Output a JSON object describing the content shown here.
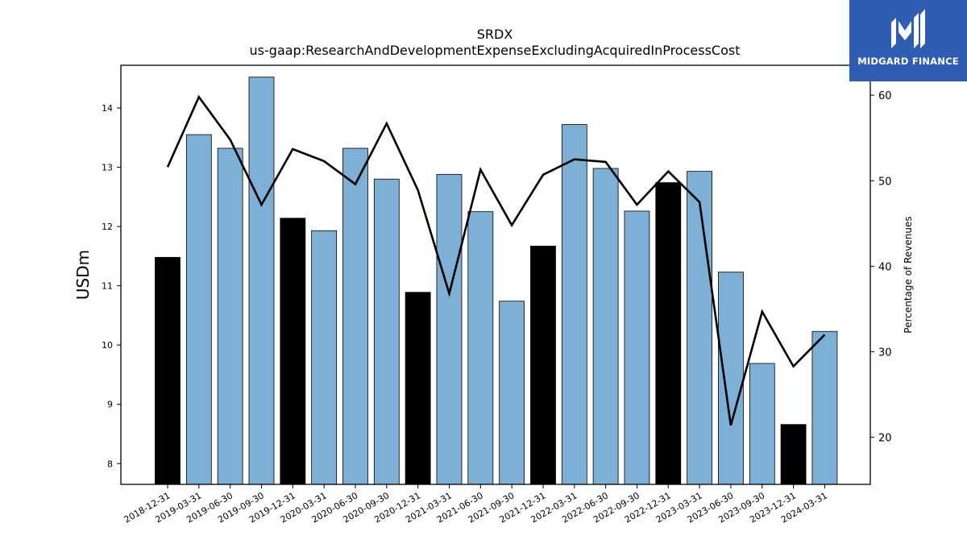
{
  "chart_data": {
    "type": "bar",
    "title": "SRDX",
    "subtitle": "us-gaap:ResearchAndDevelopmentExpenseExcludingAcquiredInProcessCost",
    "ylabel": "USDm",
    "y2label": "Percentage of Revenues",
    "ylim": [
      7.65,
      14.72
    ],
    "y2lim": [
      14.5,
      63.5
    ],
    "yticks": [
      8,
      9,
      10,
      11,
      12,
      13,
      14
    ],
    "y2ticks": [
      20,
      30,
      40,
      50,
      60
    ],
    "grid": false,
    "categories": [
      "2018-12-31",
      "2019-03-31",
      "2019-06-30",
      "2019-09-30",
      "2019-12-31",
      "2020-03-31",
      "2020-06-30",
      "2020-09-30",
      "2020-12-31",
      "2021-03-31",
      "2021-06-30",
      "2021-09-30",
      "2021-12-31",
      "2022-03-31",
      "2022-06-30",
      "2022-09-30",
      "2022-12-31",
      "2023-03-31",
      "2023-06-30",
      "2023-09-30",
      "2023-12-31",
      "2024-03-31"
    ],
    "series": [
      {
        "kind": "bar",
        "axis": "left",
        "values": [
          11.48,
          13.55,
          13.32,
          14.52,
          12.14,
          11.93,
          13.32,
          12.8,
          10.89,
          12.88,
          12.25,
          10.74,
          11.67,
          13.72,
          12.98,
          12.26,
          12.74,
          12.93,
          11.23,
          9.69,
          8.66,
          10.23
        ],
        "colors": [
          "#000000",
          "#7eb0d5",
          "#7eb0d5",
          "#7eb0d5",
          "#000000",
          "#7eb0d5",
          "#7eb0d5",
          "#7eb0d5",
          "#000000",
          "#7eb0d5",
          "#7eb0d5",
          "#7eb0d5",
          "#000000",
          "#7eb0d5",
          "#7eb0d5",
          "#7eb0d5",
          "#000000",
          "#7eb0d5",
          "#7eb0d5",
          "#7eb0d5",
          "#000000",
          "#7eb0d5"
        ]
      },
      {
        "kind": "line",
        "axis": "right",
        "color": "#000000",
        "values": [
          51.6,
          59.8,
          54.8,
          47.2,
          53.7,
          52.3,
          49.6,
          56.7,
          48.9,
          36.8,
          51.3,
          44.8,
          50.7,
          52.5,
          52.2,
          47.2,
          51.1,
          47.5,
          21.4,
          34.7,
          28.3,
          32.0
        ]
      }
    ]
  },
  "logo": {
    "text": "MIDGARD FINANCE",
    "background": "#2f5db3"
  }
}
